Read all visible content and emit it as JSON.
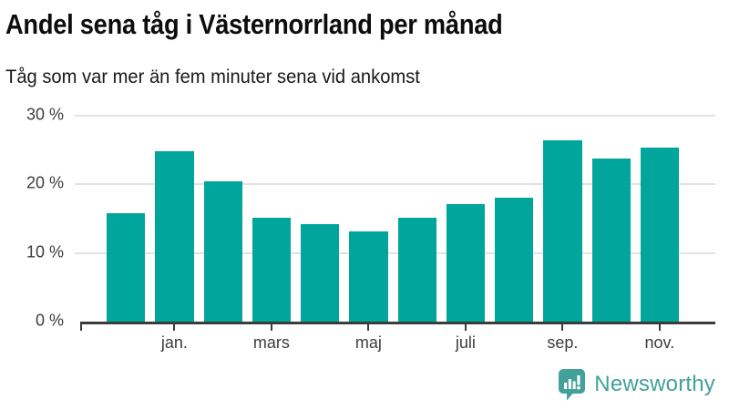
{
  "header": {
    "title": "Andel sena tåg i Västernorrland per månad",
    "subtitle": "Tåg som var mer än fem minuter sena vid ankomst"
  },
  "chart_data": {
    "type": "bar",
    "title": "Andel sena tåg i Västernorrland per månad",
    "subtitle": "Tåg som var mer än fem minuter sena vid ankomst",
    "unit": "%",
    "x_tick_labels": [
      "",
      "jan.",
      "",
      "mars",
      "",
      "maj",
      "",
      "juli",
      "",
      "sep.",
      "",
      "nov."
    ],
    "values": [
      15.8,
      24.8,
      20.4,
      15.2,
      14.2,
      13.2,
      15.1,
      17.1,
      18.1,
      26.4,
      23.7,
      25.3
    ],
    "y_ticks": [
      {
        "value": 0,
        "label": "0 %"
      },
      {
        "value": 10,
        "label": "10 %"
      },
      {
        "value": 20,
        "label": "20 %"
      },
      {
        "value": 30,
        "label": "30 %"
      }
    ],
    "ylim": [
      0,
      30
    ],
    "grid": "horizontal",
    "legend": "none",
    "bar_color": "#00a59c",
    "axis_color": "#3b3b3b",
    "gridline_color": "#e2e2e2",
    "tick_label_color": "#3c3c3c"
  },
  "footer": {
    "brand": "Newsworthy",
    "brand_color": "#43a09b",
    "logo_icon": "newsworthy-speech-bubble-bar-chart-icon"
  }
}
